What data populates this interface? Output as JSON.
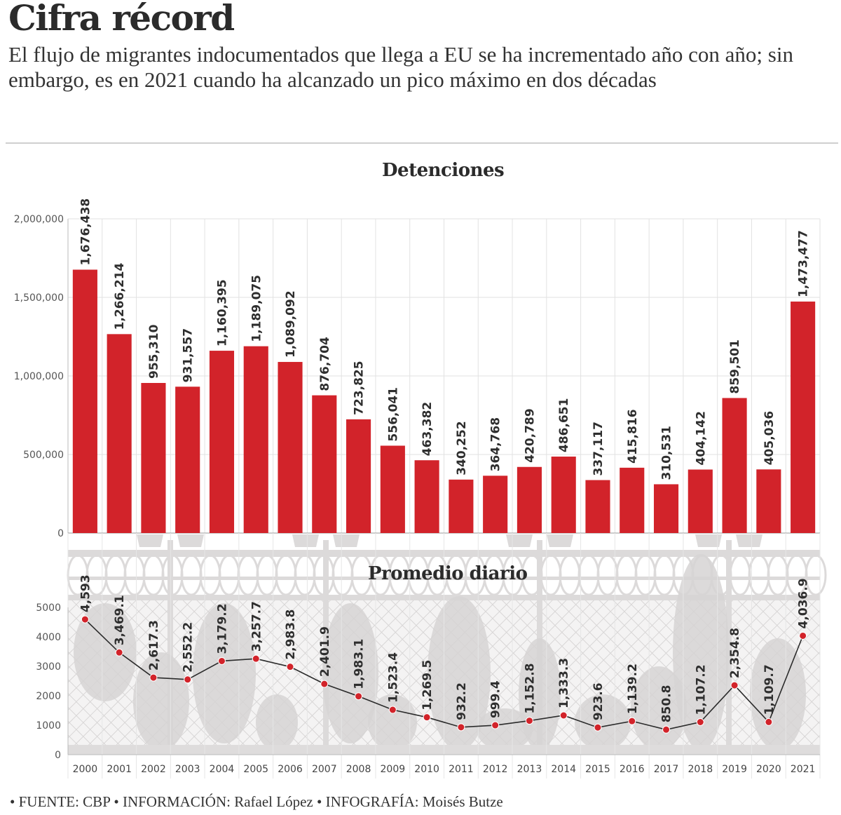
{
  "header": {
    "title": "Cifra récord",
    "subtitle": "El flujo de migrantes indocumentados que llega a EU se ha incrementado año con año; sin embargo, es en 2021 cuando ha alcanzado un pico máximo en dos décadas"
  },
  "footer": "• FUENTE: CBP • INFORMACIÓN: Rafael López • INFOGRAFÍA: Moisés Butze",
  "colors": {
    "bar": "#d2232a",
    "point": "#d2232a",
    "line": "#2b2b2b",
    "grid": "#e2e2e2",
    "fence": "#dcdada"
  },
  "chart_data": [
    {
      "type": "bar",
      "title": "Detenciones",
      "xlabel": "",
      "ylabel": "",
      "categories": [
        "2000",
        "2001",
        "2002",
        "2003",
        "2004",
        "2005",
        "2006",
        "2007",
        "2008",
        "2009",
        "2010",
        "2011",
        "2012",
        "2013",
        "2014",
        "2015",
        "2016",
        "2017",
        "2018",
        "2019",
        "2020",
        "2021"
      ],
      "values": [
        1676438,
        1266214,
        955310,
        931557,
        1160395,
        1189075,
        1089092,
        876704,
        723825,
        556041,
        463382,
        340252,
        364768,
        420789,
        486651,
        337117,
        415816,
        310531,
        404142,
        859501,
        405036,
        1473477
      ],
      "data_labels": [
        "1,676,438",
        "1,266,214",
        "955,310",
        "931,557",
        "1,160,395",
        "1,189,075",
        "1,089,092",
        "876,704",
        "723,825",
        "556,041",
        "463,382",
        "340,252",
        "364,768",
        "420,789",
        "486,651",
        "337,117",
        "415,816",
        "310,531",
        "404,142",
        "859,501",
        "405,036",
        "1,473,477"
      ],
      "ylim": [
        0,
        2000000
      ],
      "yticks": [
        0,
        500000,
        1000000,
        1500000,
        2000000
      ],
      "ytick_labels": [
        "0",
        "500,000",
        "1,000,000",
        "1,500,000",
        "2,000,000"
      ],
      "grid": true
    },
    {
      "type": "line",
      "title": "Promedio diario",
      "xlabel": "",
      "ylabel": "",
      "categories": [
        "2000",
        "2001",
        "2002",
        "2003",
        "2004",
        "2005",
        "2006",
        "2007",
        "2008",
        "2009",
        "2010",
        "2011",
        "2012",
        "2013",
        "2014",
        "2015",
        "2016",
        "2017",
        "2018",
        "2019",
        "2020",
        "2021"
      ],
      "values": [
        4593,
        3469.1,
        2617.3,
        2552.2,
        3179.2,
        3257.7,
        2983.8,
        2401.9,
        1983.1,
        1523.4,
        1269.5,
        932.2,
        999.4,
        1152.8,
        1333.3,
        923.6,
        1139.2,
        850.8,
        1107.2,
        2354.8,
        1109.7,
        4036.9
      ],
      "data_labels": [
        "4,593",
        "3,469.1",
        "2,617.3",
        "2,552.2",
        "3,179.2",
        "3,257.7",
        "2,983.8",
        "2,401.9",
        "1,983.1",
        "1,523.4",
        "1,269.5",
        "932.2",
        "999.4",
        "1,152.8",
        "1,333.3",
        "923.6",
        "1,139.2",
        "850.8",
        "1,107.2",
        "2,354.8",
        "1,109.7",
        "4,036.9"
      ],
      "ylim": [
        0,
        5000
      ],
      "yticks": [
        0,
        1000,
        2000,
        3000,
        4000,
        5000
      ],
      "ytick_labels": [
        "0",
        "1000",
        "2000",
        "3000",
        "4000",
        "5000"
      ],
      "grid": true
    }
  ]
}
